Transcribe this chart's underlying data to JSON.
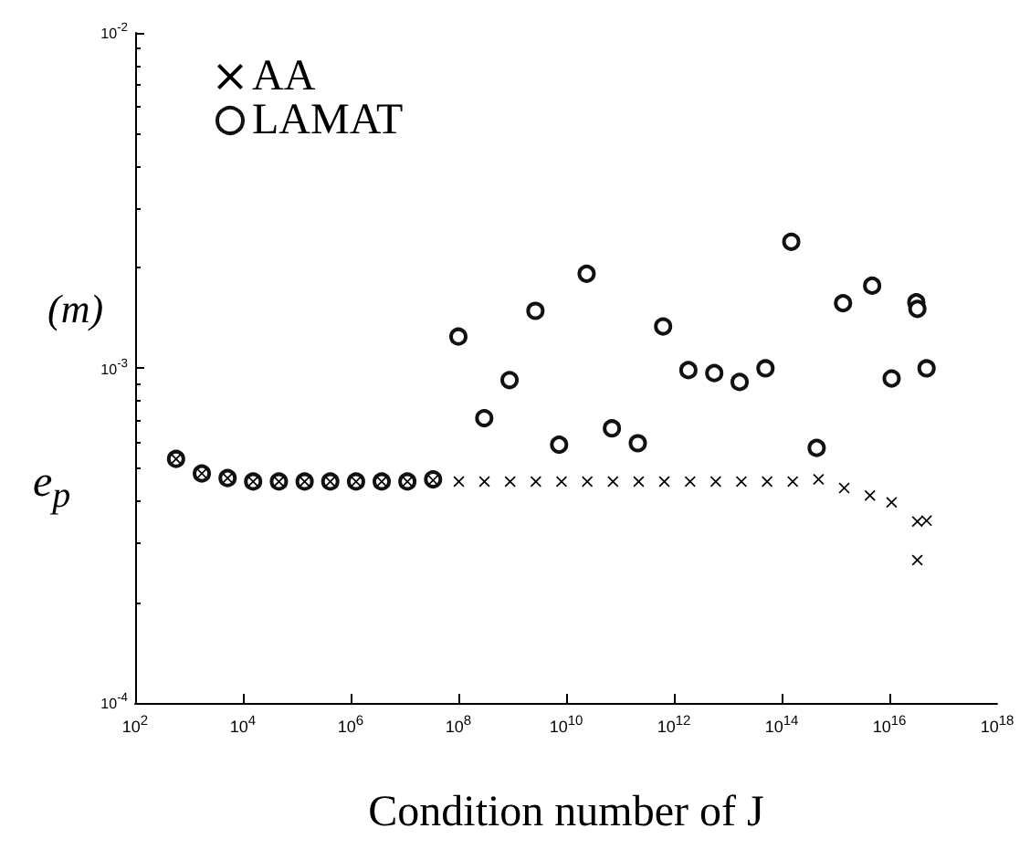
{
  "chart_data": {
    "type": "scatter",
    "xlabel": "Condition number of J",
    "ylabel": "e$_{p}$",
    "annotations": [
      "(m)"
    ],
    "log": "xy",
    "grid": false,
    "legend": "top left",
    "xlim": [
      100.0,
      1e+18
    ],
    "ylim": [
      0.0001,
      0.01
    ],
    "xticks": [
      {
        "value": 100.0,
        "label": "10$^{2}$"
      },
      {
        "value": 10000.0,
        "label": "10$^{4}$"
      },
      {
        "value": 1000000.0,
        "label": "10$^{6}$"
      },
      {
        "value": 100000000.0,
        "label": "10$^{8}$"
      },
      {
        "value": 10000000000.0,
        "label": "10$^{10}$"
      },
      {
        "value": 1000000000000.0,
        "label": "10$^{12}$"
      },
      {
        "value": 100000000000000.0,
        "label": "10$^{14}$"
      },
      {
        "value": 1e+16,
        "label": "10$^{16}$"
      },
      {
        "value": 1e+18,
        "label": "10$^{18}$"
      }
    ],
    "yticks": [
      {
        "value": 0.0001,
        "label": "10$^{-4}$"
      },
      {
        "value": 0.001,
        "label": "10$^{-3}$"
      },
      {
        "value": 0.01,
        "label": "10$^{-2}$"
      }
    ],
    "series": [
      {
        "name": "AA",
        "color": "#000000",
        "marker": "cross",
        "x": [
          575,
          1730,
          5200,
          15500,
          46600,
          140000,
          419000,
          1260000,
          3770000,
          11300000,
          33900000,
          102000000,
          305000000,
          914000000,
          2740000000,
          8220000000,
          24700000000,
          74000000000,
          222000000000,
          665000000000,
          2000000000000,
          5980000000000,
          17900000000000,
          53800000000000,
          161000000000000,
          484000000000000,
          1450000000000000,
          4360000000000000,
          11000000000000000,
          33000000000000000,
          33000000000000000,
          49000000000000000
        ],
        "values": [
          0.000535,
          0.000484,
          0.000469,
          0.000458,
          0.000458,
          0.000458,
          0.000458,
          0.000458,
          0.000458,
          0.000458,
          0.000462,
          0.000458,
          0.000458,
          0.000458,
          0.000458,
          0.000458,
          0.000458,
          0.000458,
          0.000458,
          0.000458,
          0.000458,
          0.000458,
          0.000458,
          0.000458,
          0.000458,
          0.000465,
          0.000438,
          0.000416,
          0.000397,
          0.000348,
          0.000267,
          0.00035
        ]
      },
      {
        "name": "LAMAT",
        "color": "#111111",
        "marker": "circle",
        "x": [
          575,
          1730,
          5200,
          15500,
          46600,
          140000,
          419000,
          1260000,
          3770000,
          11300000,
          33900000,
          100000000,
          302000000,
          891000000,
          2690000000,
          7410000000,
          24000000000,
          70800000000,
          214000000000,
          631000000000,
          1860000000000,
          5620000000000,
          16600000000000,
          50100000000000,
          151000000000000,
          447000000000000,
          1380000000000000,
          4790000000000000,
          11000000000000000,
          31600000000000000,
          33100000000000000,
          49000000000000000
        ],
        "values": [
          0.000535,
          0.000484,
          0.000469,
          0.000458,
          0.000458,
          0.000458,
          0.000458,
          0.000458,
          0.000458,
          0.000458,
          0.000465,
          0.00124,
          0.000708,
          0.00092,
          0.00148,
          0.00059,
          0.00191,
          0.00066,
          0.000596,
          0.00133,
          0.000985,
          0.000965,
          0.000908,
          0.000997,
          0.00238,
          0.000577,
          0.00156,
          0.00176,
          0.00093,
          0.00157,
          0.0015,
          0.000997
        ]
      }
    ]
  }
}
